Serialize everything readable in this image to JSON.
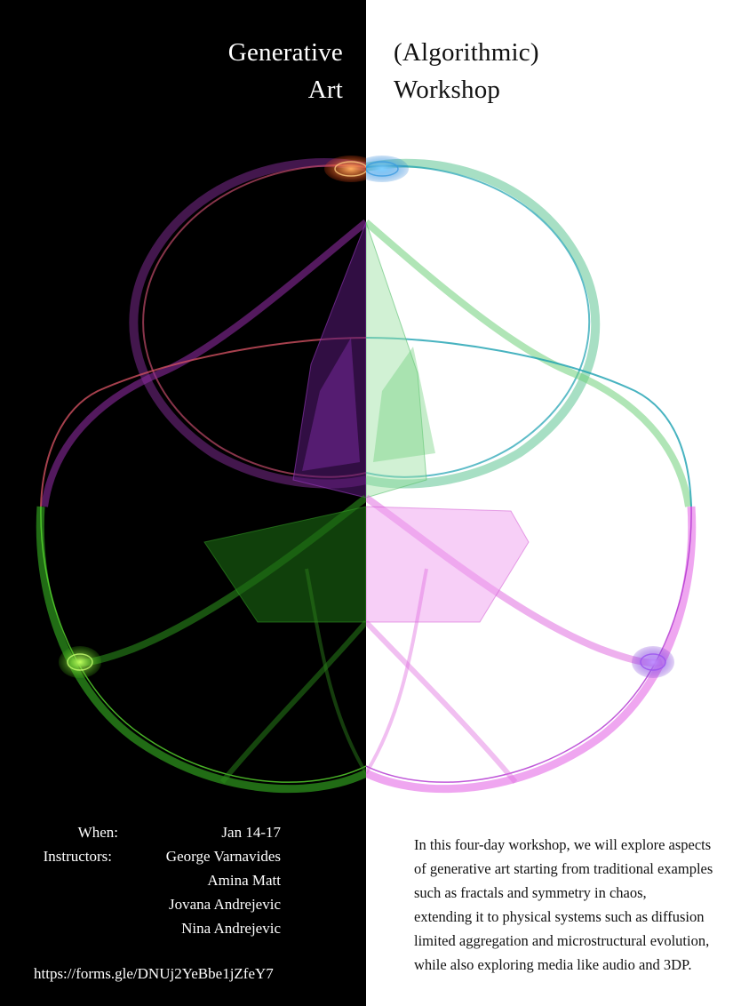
{
  "title": {
    "left_line1": "Generative",
    "left_line2": "Art",
    "right_line1": "(Algorithmic)",
    "right_line2": "Workshop"
  },
  "info": {
    "when_label": "When:",
    "when_value": "Jan 14-17",
    "instructors_label": "Instructors:",
    "instructors": [
      "George Varnavides",
      "Amina Matt",
      "Jovana Andrejevic",
      "Nina Andrejevic"
    ]
  },
  "link": "https://forms.gle/DNUj2YeBbe1jZfeY7",
  "description": [
    "In this four-day workshop, we will explore aspects",
    "of generative art starting from traditional examples",
    "such as fractals and symmetry in chaos,",
    "extending it to physical systems such as diffusion",
    "limited aggregation and microstructural evolution,",
    "while also exploring media like audio and 3DP."
  ],
  "colors": {
    "left_background": "#000000",
    "right_background": "#ffffff",
    "top_left_lobe": "#7a2a8c",
    "top_right_lobe": "#6fd07a",
    "bottom_left_lobe": "#2f9a1e",
    "bottom_right_lobe": "#e46ae6",
    "orange_node": "#ff6a1a",
    "blue_node": "#1a9ad6",
    "green_node": "#6dd820",
    "purple_node": "#8a3ae0"
  }
}
